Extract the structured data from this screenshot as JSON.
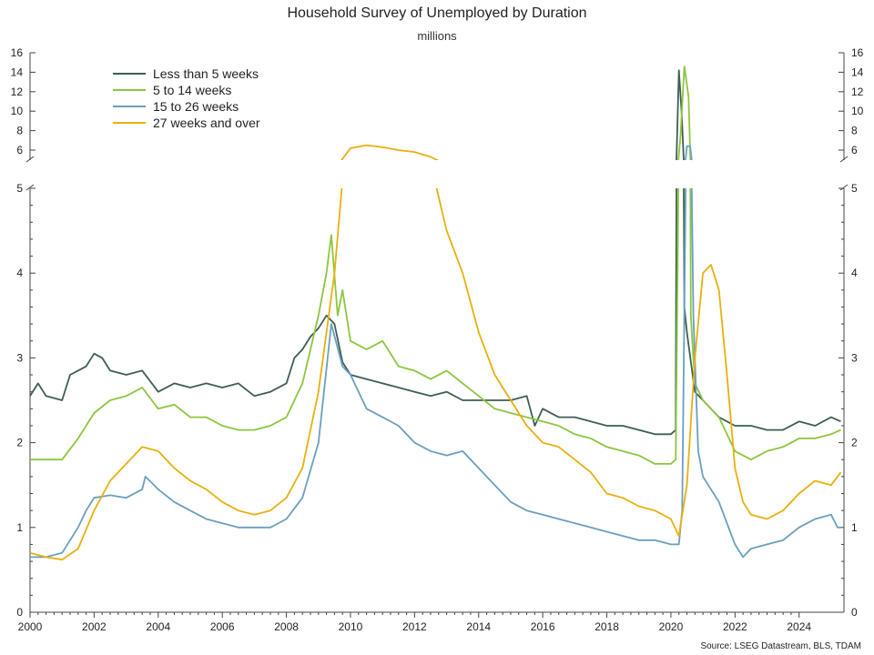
{
  "header": {
    "title": "Household Survey of Unemployed by Duration",
    "subtitle": "millions"
  },
  "source": "Source: LSEG Datastream, BLS, TDAM",
  "legend": [
    {
      "label": "Less than 5 weeks",
      "color": "#3e5f50"
    },
    {
      "label": "5 to 14 weeks",
      "color": "#8cc63f"
    },
    {
      "label": "15 to 26 weeks",
      "color": "#6a9fc0"
    },
    {
      "label": "27 weeks and over",
      "color": "#e8b00e"
    }
  ],
  "chart_data": {
    "type": "line",
    "title": "Household Survey of Unemployed by Duration",
    "subtitle": "millions",
    "y_axis_break": true,
    "ylim_lower": [
      0,
      5
    ],
    "ylim_upper": [
      5,
      16
    ],
    "ticks_lower": [
      0,
      1,
      2,
      3,
      4,
      5
    ],
    "ticks_upper": [
      6,
      8,
      10,
      12,
      14,
      16
    ],
    "xlim": [
      2000,
      2025.4
    ],
    "x_ticks": [
      "2000",
      "2002",
      "2004",
      "2006",
      "2008",
      "2010",
      "2012",
      "2014",
      "2016",
      "2018",
      "2020",
      "2022",
      "2024"
    ],
    "x_tick_values": [
      2000,
      2002,
      2004,
      2006,
      2008,
      2010,
      2012,
      2014,
      2016,
      2018,
      2020,
      2022,
      2024
    ],
    "legend_position": "top-left",
    "series": [
      {
        "name": "Less than 5 weeks",
        "color": "#3e5f50",
        "points": [
          [
            2000.0,
            2.55
          ],
          [
            2000.25,
            2.7
          ],
          [
            2000.5,
            2.55
          ],
          [
            2001.0,
            2.5
          ],
          [
            2001.25,
            2.8
          ],
          [
            2001.5,
            2.85
          ],
          [
            2001.75,
            2.9
          ],
          [
            2002.0,
            3.05
          ],
          [
            2002.25,
            3.0
          ],
          [
            2002.5,
            2.85
          ],
          [
            2003.0,
            2.8
          ],
          [
            2003.5,
            2.85
          ],
          [
            2004.0,
            2.6
          ],
          [
            2004.5,
            2.7
          ],
          [
            2005.0,
            2.65
          ],
          [
            2005.5,
            2.7
          ],
          [
            2006.0,
            2.65
          ],
          [
            2006.5,
            2.7
          ],
          [
            2007.0,
            2.55
          ],
          [
            2007.5,
            2.6
          ],
          [
            2008.0,
            2.7
          ],
          [
            2008.25,
            3.0
          ],
          [
            2008.5,
            3.1
          ],
          [
            2008.75,
            3.25
          ],
          [
            2009.0,
            3.35
          ],
          [
            2009.25,
            3.5
          ],
          [
            2009.5,
            3.4
          ],
          [
            2009.75,
            2.95
          ],
          [
            2010.0,
            2.8
          ],
          [
            2010.5,
            2.75
          ],
          [
            2011.0,
            2.7
          ],
          [
            2011.5,
            2.65
          ],
          [
            2012.0,
            2.6
          ],
          [
            2012.5,
            2.55
          ],
          [
            2013.0,
            2.6
          ],
          [
            2013.5,
            2.5
          ],
          [
            2014.0,
            2.5
          ],
          [
            2014.5,
            2.5
          ],
          [
            2015.0,
            2.5
          ],
          [
            2015.5,
            2.55
          ],
          [
            2015.75,
            2.2
          ],
          [
            2016.0,
            2.4
          ],
          [
            2016.5,
            2.3
          ],
          [
            2017.0,
            2.3
          ],
          [
            2017.5,
            2.25
          ],
          [
            2018.0,
            2.2
          ],
          [
            2018.5,
            2.2
          ],
          [
            2019.0,
            2.15
          ],
          [
            2019.5,
            2.1
          ],
          [
            2020.0,
            2.1
          ],
          [
            2020.15,
            2.15
          ],
          [
            2020.25,
            14.2
          ],
          [
            2020.33,
            10.0
          ],
          [
            2020.42,
            3.6
          ],
          [
            2020.5,
            3.3
          ],
          [
            2020.75,
            2.6
          ],
          [
            2021.0,
            2.5
          ],
          [
            2021.5,
            2.3
          ],
          [
            2022.0,
            2.2
          ],
          [
            2022.5,
            2.2
          ],
          [
            2023.0,
            2.15
          ],
          [
            2023.5,
            2.15
          ],
          [
            2024.0,
            2.25
          ],
          [
            2024.5,
            2.2
          ],
          [
            2025.0,
            2.3
          ],
          [
            2025.3,
            2.25
          ]
        ]
      },
      {
        "name": "5 to 14 weeks",
        "color": "#8cc63f",
        "points": [
          [
            2000.0,
            1.8
          ],
          [
            2000.5,
            1.8
          ],
          [
            2001.0,
            1.8
          ],
          [
            2001.5,
            2.05
          ],
          [
            2002.0,
            2.35
          ],
          [
            2002.5,
            2.5
          ],
          [
            2003.0,
            2.55
          ],
          [
            2003.5,
            2.65
          ],
          [
            2004.0,
            2.4
          ],
          [
            2004.5,
            2.45
          ],
          [
            2005.0,
            2.3
          ],
          [
            2005.5,
            2.3
          ],
          [
            2006.0,
            2.2
          ],
          [
            2006.5,
            2.15
          ],
          [
            2007.0,
            2.15
          ],
          [
            2007.5,
            2.2
          ],
          [
            2008.0,
            2.3
          ],
          [
            2008.5,
            2.7
          ],
          [
            2009.0,
            3.5
          ],
          [
            2009.25,
            4.0
          ],
          [
            2009.4,
            4.45
          ],
          [
            2009.6,
            3.5
          ],
          [
            2009.75,
            3.8
          ],
          [
            2010.0,
            3.2
          ],
          [
            2010.5,
            3.1
          ],
          [
            2011.0,
            3.2
          ],
          [
            2011.5,
            2.9
          ],
          [
            2012.0,
            2.85
          ],
          [
            2012.5,
            2.75
          ],
          [
            2013.0,
            2.85
          ],
          [
            2013.5,
            2.7
          ],
          [
            2014.0,
            2.55
          ],
          [
            2014.5,
            2.4
          ],
          [
            2015.0,
            2.35
          ],
          [
            2015.5,
            2.3
          ],
          [
            2016.0,
            2.25
          ],
          [
            2016.5,
            2.2
          ],
          [
            2017.0,
            2.1
          ],
          [
            2017.5,
            2.05
          ],
          [
            2018.0,
            1.95
          ],
          [
            2018.5,
            1.9
          ],
          [
            2019.0,
            1.85
          ],
          [
            2019.5,
            1.75
          ],
          [
            2020.0,
            1.75
          ],
          [
            2020.15,
            1.8
          ],
          [
            2020.3,
            7.5
          ],
          [
            2020.42,
            14.6
          ],
          [
            2020.55,
            11.5
          ],
          [
            2020.62,
            3.5
          ],
          [
            2020.75,
            2.7
          ],
          [
            2021.0,
            2.5
          ],
          [
            2021.5,
            2.3
          ],
          [
            2022.0,
            1.9
          ],
          [
            2022.5,
            1.8
          ],
          [
            2023.0,
            1.9
          ],
          [
            2023.5,
            1.95
          ],
          [
            2024.0,
            2.05
          ],
          [
            2024.5,
            2.05
          ],
          [
            2025.0,
            2.1
          ],
          [
            2025.3,
            2.15
          ]
        ]
      },
      {
        "name": "15 to 26 weeks",
        "color": "#6a9fc0",
        "points": [
          [
            2000.0,
            0.65
          ],
          [
            2000.5,
            0.65
          ],
          [
            2001.0,
            0.7
          ],
          [
            2001.25,
            0.85
          ],
          [
            2001.5,
            1.0
          ],
          [
            2001.75,
            1.2
          ],
          [
            2002.0,
            1.35
          ],
          [
            2002.5,
            1.38
          ],
          [
            2003.0,
            1.35
          ],
          [
            2003.5,
            1.45
          ],
          [
            2003.6,
            1.6
          ],
          [
            2004.0,
            1.45
          ],
          [
            2004.5,
            1.3
          ],
          [
            2005.0,
            1.2
          ],
          [
            2005.5,
            1.1
          ],
          [
            2006.0,
            1.05
          ],
          [
            2006.5,
            1.0
          ],
          [
            2007.0,
            1.0
          ],
          [
            2007.5,
            1.0
          ],
          [
            2008.0,
            1.1
          ],
          [
            2008.5,
            1.35
          ],
          [
            2009.0,
            2.0
          ],
          [
            2009.4,
            3.4
          ],
          [
            2009.75,
            2.9
          ],
          [
            2010.0,
            2.8
          ],
          [
            2010.5,
            2.4
          ],
          [
            2011.0,
            2.3
          ],
          [
            2011.5,
            2.2
          ],
          [
            2012.0,
            2.0
          ],
          [
            2012.5,
            1.9
          ],
          [
            2013.0,
            1.85
          ],
          [
            2013.5,
            1.9
          ],
          [
            2014.0,
            1.7
          ],
          [
            2014.5,
            1.5
          ],
          [
            2015.0,
            1.3
          ],
          [
            2015.5,
            1.2
          ],
          [
            2016.0,
            1.15
          ],
          [
            2016.5,
            1.1
          ],
          [
            2017.0,
            1.05
          ],
          [
            2017.5,
            1.0
          ],
          [
            2018.0,
            0.95
          ],
          [
            2018.5,
            0.9
          ],
          [
            2019.0,
            0.85
          ],
          [
            2019.5,
            0.85
          ],
          [
            2020.0,
            0.8
          ],
          [
            2020.25,
            0.8
          ],
          [
            2020.35,
            1.2
          ],
          [
            2020.5,
            6.4
          ],
          [
            2020.6,
            6.4
          ],
          [
            2020.7,
            3.5
          ],
          [
            2020.85,
            1.9
          ],
          [
            2021.0,
            1.6
          ],
          [
            2021.5,
            1.3
          ],
          [
            2022.0,
            0.8
          ],
          [
            2022.25,
            0.65
          ],
          [
            2022.5,
            0.75
          ],
          [
            2023.0,
            0.8
          ],
          [
            2023.5,
            0.85
          ],
          [
            2024.0,
            1.0
          ],
          [
            2024.5,
            1.1
          ],
          [
            2025.0,
            1.15
          ],
          [
            2025.2,
            1.0
          ],
          [
            2025.3,
            1.0
          ]
        ]
      },
      {
        "name": "27 weeks and over",
        "color": "#e8b00e",
        "points": [
          [
            2000.0,
            0.7
          ],
          [
            2000.5,
            0.65
          ],
          [
            2001.0,
            0.62
          ],
          [
            2001.5,
            0.75
          ],
          [
            2002.0,
            1.2
          ],
          [
            2002.5,
            1.55
          ],
          [
            2003.0,
            1.75
          ],
          [
            2003.5,
            1.95
          ],
          [
            2004.0,
            1.9
          ],
          [
            2004.5,
            1.7
          ],
          [
            2005.0,
            1.55
          ],
          [
            2005.5,
            1.45
          ],
          [
            2006.0,
            1.3
          ],
          [
            2006.5,
            1.2
          ],
          [
            2007.0,
            1.15
          ],
          [
            2007.5,
            1.2
          ],
          [
            2008.0,
            1.35
          ],
          [
            2008.5,
            1.7
          ],
          [
            2009.0,
            2.6
          ],
          [
            2009.5,
            4.0
          ],
          [
            2010.0,
            6.2
          ],
          [
            2010.5,
            6.5
          ],
          [
            2011.0,
            6.3
          ],
          [
            2011.5,
            6.0
          ],
          [
            2012.0,
            5.8
          ],
          [
            2012.5,
            5.3
          ],
          [
            2013.0,
            4.5
          ],
          [
            2013.5,
            4.0
          ],
          [
            2014.0,
            3.3
          ],
          [
            2014.5,
            2.8
          ],
          [
            2015.0,
            2.5
          ],
          [
            2015.5,
            2.2
          ],
          [
            2016.0,
            2.0
          ],
          [
            2016.5,
            1.95
          ],
          [
            2017.0,
            1.8
          ],
          [
            2017.5,
            1.65
          ],
          [
            2018.0,
            1.4
          ],
          [
            2018.5,
            1.35
          ],
          [
            2019.0,
            1.25
          ],
          [
            2019.5,
            1.2
          ],
          [
            2020.0,
            1.1
          ],
          [
            2020.25,
            0.9
          ],
          [
            2020.5,
            1.5
          ],
          [
            2020.75,
            3.0
          ],
          [
            2021.0,
            4.0
          ],
          [
            2021.25,
            4.1
          ],
          [
            2021.5,
            3.8
          ],
          [
            2021.75,
            2.8
          ],
          [
            2022.0,
            1.7
          ],
          [
            2022.25,
            1.3
          ],
          [
            2022.5,
            1.15
          ],
          [
            2023.0,
            1.1
          ],
          [
            2023.5,
            1.2
          ],
          [
            2024.0,
            1.4
          ],
          [
            2024.5,
            1.55
          ],
          [
            2025.0,
            1.5
          ],
          [
            2025.3,
            1.65
          ]
        ]
      }
    ]
  }
}
